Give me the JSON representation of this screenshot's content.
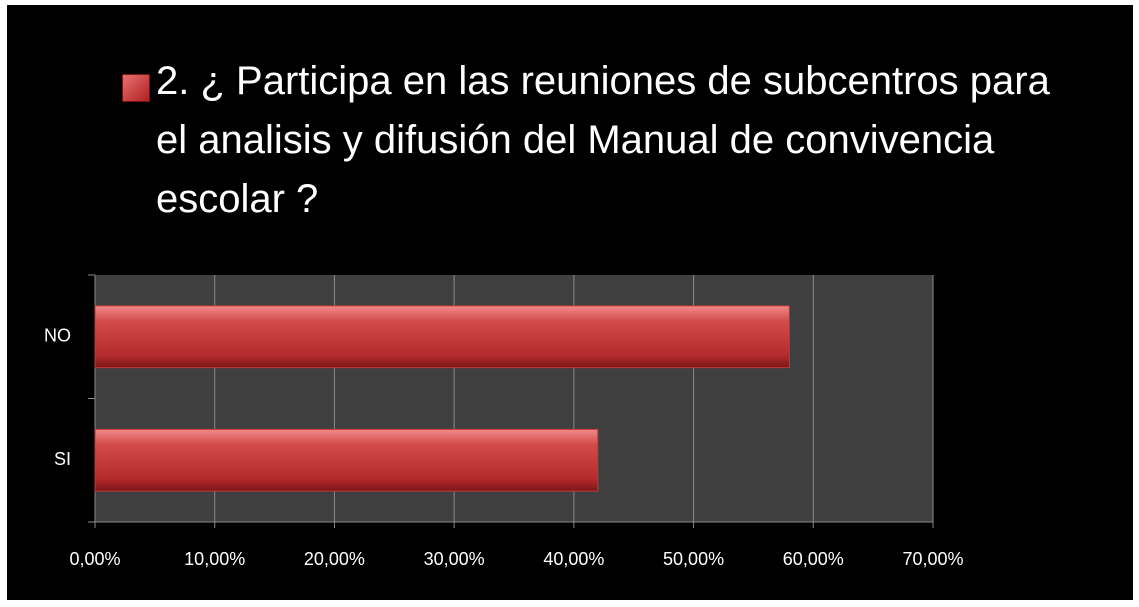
{
  "chart_data": {
    "type": "bar",
    "orientation": "horizontal",
    "title": "2.  ¿ Participa en las reuniones de subcentros para el analisis y difusión del Manual de convivencia escolar ?",
    "categories": [
      "NO",
      "SI"
    ],
    "values": [
      58,
      42
    ],
    "color": "#c0393b",
    "xlim": [
      0,
      70
    ],
    "xticks": [
      {
        "value": 0,
        "label": "0,00%"
      },
      {
        "value": 10,
        "label": "10,00%"
      },
      {
        "value": 20,
        "label": "20,00%"
      },
      {
        "value": 30,
        "label": "30,00%"
      },
      {
        "value": 40,
        "label": "40,00%"
      },
      {
        "value": 50,
        "label": "50,00%"
      },
      {
        "value": 60,
        "label": "60,00%"
      },
      {
        "value": 70,
        "label": "70,00%"
      }
    ],
    "grid": true
  }
}
